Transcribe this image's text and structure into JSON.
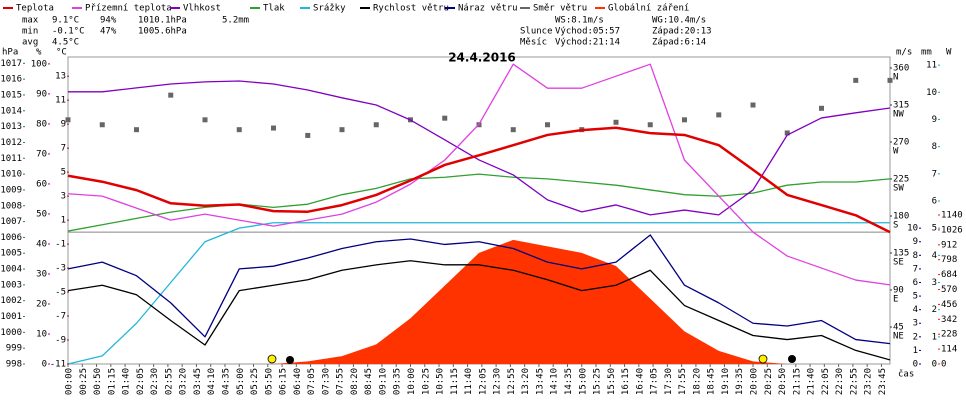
{
  "chart_data": {
    "type": "line",
    "title": "24.4.2016",
    "x_label": "čas",
    "annotations": {
      "rows": [
        [
          "max",
          "9.1°C",
          "94%",
          "1010.1hPa",
          "5.2mm"
        ],
        [
          "min",
          "-0.1°C",
          "47%",
          "1005.6hPa"
        ],
        [
          "avg",
          "4.5°C"
        ]
      ],
      "wind": "WS:8.1m/s",
      "gust": "WG:10.4m/s",
      "sun": [
        "Slunce",
        "Východ:05:57",
        "Západ:20:13"
      ],
      "moon": [
        "Měsíc",
        "Východ:21:14",
        "Západ:6:14"
      ]
    },
    "xlim": [
      0,
      1440
    ],
    "xticks": [
      {
        "value": 0,
        "label": "00:00"
      },
      {
        "value": 25,
        "label": "00:25"
      },
      {
        "value": 50,
        "label": "00:50"
      },
      {
        "value": 75,
        "label": "01:15"
      },
      {
        "value": 100,
        "label": "01:40"
      },
      {
        "value": 125,
        "label": "02:05"
      },
      {
        "value": 150,
        "label": "02:30"
      },
      {
        "value": 175,
        "label": "02:55"
      },
      {
        "value": 200,
        "label": "03:20"
      },
      {
        "value": 225,
        "label": "03:45"
      },
      {
        "value": 250,
        "label": "04:10"
      },
      {
        "value": 275,
        "label": "04:35"
      },
      {
        "value": 300,
        "label": "05:00"
      },
      {
        "value": 325,
        "label": "05:25"
      },
      {
        "value": 350,
        "label": "05:50"
      },
      {
        "value": 375,
        "label": "06:15"
      },
      {
        "value": 400,
        "label": "06:40"
      },
      {
        "value": 425,
        "label": "07:05"
      },
      {
        "value": 450,
        "label": "07:30"
      },
      {
        "value": 475,
        "label": "07:55"
      },
      {
        "value": 500,
        "label": "08:20"
      },
      {
        "value": 525,
        "label": "08:45"
      },
      {
        "value": 550,
        "label": "09:10"
      },
      {
        "value": 575,
        "label": "09:35"
      },
      {
        "value": 600,
        "label": "10:00"
      },
      {
        "value": 625,
        "label": "10:25"
      },
      {
        "value": 650,
        "label": "10:50"
      },
      {
        "value": 675,
        "label": "11:15"
      },
      {
        "value": 700,
        "label": "11:40"
      },
      {
        "value": 725,
        "label": "12:05"
      },
      {
        "value": 750,
        "label": "12:30"
      },
      {
        "value": 775,
        "label": "12:55"
      },
      {
        "value": 800,
        "label": "13:20"
      },
      {
        "value": 825,
        "label": "13:45"
      },
      {
        "value": 850,
        "label": "14:10"
      },
      {
        "value": 875,
        "label": "14:35"
      },
      {
        "value": 900,
        "label": "15:00"
      },
      {
        "value": 925,
        "label": "15:25"
      },
      {
        "value": 950,
        "label": "15:50"
      },
      {
        "value": 975,
        "label": "16:15"
      },
      {
        "value": 1000,
        "label": "16:40"
      },
      {
        "value": 1025,
        "label": "17:05"
      },
      {
        "value": 1050,
        "label": "17:30"
      },
      {
        "value": 1075,
        "label": "17:55"
      },
      {
        "value": 1100,
        "label": "18:20"
      },
      {
        "value": 1125,
        "label": "18:45"
      },
      {
        "value": 1150,
        "label": "19:10"
      },
      {
        "value": 1175,
        "label": "19:35"
      },
      {
        "value": 1200,
        "label": "20:00"
      },
      {
        "value": 1225,
        "label": "20:25"
      },
      {
        "value": 1250,
        "label": "20:50"
      },
      {
        "value": 1275,
        "label": "21:15"
      },
      {
        "value": 1300,
        "label": "21:40"
      },
      {
        "value": 1325,
        "label": "22:05"
      },
      {
        "value": 1350,
        "label": "22:30"
      },
      {
        "value": 1375,
        "label": "22:55"
      },
      {
        "value": 1400,
        "label": "23:20"
      },
      {
        "value": 1425,
        "label": "23:45"
      }
    ],
    "x": [
      0,
      60,
      120,
      180,
      240,
      300,
      360,
      420,
      480,
      540,
      600,
      660,
      720,
      780,
      840,
      900,
      960,
      1020,
      1080,
      1140,
      1200,
      1260,
      1320,
      1380,
      1440
    ],
    "axes": [
      {
        "unit": "hPa",
        "color": "#2a8a2a",
        "lim": [
          998,
          1017.4
        ],
        "ticks": [
          998,
          999,
          1000,
          1001,
          1002,
          1003,
          1004,
          1005,
          1006,
          1007,
          1008,
          1009,
          1010,
          1011,
          1012,
          1013,
          1014,
          1015,
          1016,
          1017
        ]
      },
      {
        "unit": "%",
        "color": "#a000a0",
        "lim": [
          0,
          102.3
        ],
        "ticks": [
          0,
          10,
          20,
          30,
          40,
          50,
          60,
          70,
          80,
          90,
          100
        ]
      },
      {
        "unit": "°C",
        "color": "#dd0000",
        "lim": [
          -11,
          14.6
        ],
        "ticks": [
          -11,
          -9,
          -7,
          -5,
          -3,
          -1,
          1,
          3,
          5,
          7,
          9,
          11,
          13
        ]
      },
      {
        "color": "#333333",
        "lim": [
          0,
          373.4
        ],
        "ticks": [
          45,
          90,
          135,
          180,
          225,
          270,
          315,
          360
        ],
        "compass": [
          "NE",
          "E",
          "SE",
          "S",
          "SW",
          "W",
          "NW",
          "N"
        ]
      },
      {
        "unit": "m/s",
        "color": "#000080",
        "lim": [
          0,
          22.6
        ],
        "ticks": [
          0,
          1,
          2,
          3,
          4,
          5,
          6,
          7,
          8,
          9,
          10
        ]
      },
      {
        "unit": "mm",
        "color": "#1aa8c8",
        "lim": [
          0,
          11.3
        ],
        "ticks": [
          0,
          1,
          2,
          3,
          4,
          5,
          6,
          7,
          8,
          9,
          10,
          11
        ]
      },
      {
        "unit": "W",
        "color": "#ee2200",
        "lim": [
          0,
          2349
        ],
        "ticks": [
          0,
          114,
          228,
          342,
          456,
          570,
          684,
          798,
          912,
          1026,
          1140
        ]
      }
    ],
    "series": [
      {
        "name": "Teplota",
        "color": "#e00000",
        "axis": 2,
        "style": "line",
        "values": [
          4.7,
          4.2,
          3.5,
          2.4,
          2.2,
          2.3,
          1.75,
          1.7,
          2.25,
          3.1,
          4.3,
          5.6,
          6.4,
          7.25,
          8.1,
          8.5,
          8.7,
          8.25,
          8.1,
          7.25,
          5.2,
          3.1,
          2.25,
          1.4,
          0
        ]
      },
      {
        "name": "Přízemní teplota",
        "color": "#e040e0",
        "axis": 2,
        "style": "line",
        "values": [
          3.2,
          3.0,
          2.0,
          1.0,
          1.5,
          1.0,
          0.5,
          1.0,
          1.5,
          2.5,
          4.0,
          6.0,
          9.0,
          14,
          12,
          12,
          13,
          14,
          6,
          3,
          0,
          -2,
          -3,
          -4,
          -4.4
        ]
      },
      {
        "name": "Vlhkost",
        "color": "#8000c0",
        "axis": 1,
        "style": "line",
        "values": [
          90.7,
          90.7,
          92,
          93.3,
          94,
          94.3,
          93.3,
          91.3,
          88.7,
          86.3,
          81.3,
          74.7,
          68,
          63,
          54.7,
          50.7,
          53,
          49.7,
          51.3,
          49.7,
          58,
          76.3,
          82,
          83.7,
          85.3
        ]
      },
      {
        "name": "Tlak",
        "color": "#30a030",
        "axis": 0,
        "style": "line",
        "values": [
          1006.4,
          1006.8,
          1007.2,
          1007.6,
          1007.9,
          1008.1,
          1007.9,
          1008.1,
          1008.7,
          1009.1,
          1009.7,
          1009.8,
          1010.0,
          1009.8,
          1009.7,
          1009.5,
          1009.3,
          1009.0,
          1008.7,
          1008.6,
          1008.8,
          1009.3,
          1009.5,
          1009.5,
          1009.7
        ]
      },
      {
        "name": "Srážky",
        "color": "#20b8d8",
        "axis": 5,
        "style": "line",
        "values": [
          0,
          0.3,
          1.5,
          3.0,
          4.5,
          5.0,
          5.2,
          5.2,
          5.2,
          5.2,
          5.2,
          5.2,
          5.2,
          5.2,
          5.2,
          5.2,
          5.2,
          5.2,
          5.2,
          5.2,
          5.2,
          5.2,
          5.2,
          5.2,
          5.2
        ]
      },
      {
        "name": "Rychlost větru",
        "color": "#000000",
        "axis": 4,
        "style": "line",
        "values": [
          5.4,
          5.8,
          5.1,
          3.2,
          1.4,
          5.4,
          5.8,
          6.2,
          6.9,
          7.3,
          7.6,
          7.3,
          7.3,
          6.9,
          6.2,
          5.4,
          5.8,
          6.9,
          4.3,
          3.2,
          2.1,
          1.8,
          2.1,
          1.0,
          0.3
        ]
      },
      {
        "name": "Náraz větru",
        "color": "#000080",
        "axis": 4,
        "style": "line",
        "values": [
          7.0,
          7.5,
          6.5,
          4.5,
          2.0,
          7.0,
          7.2,
          7.8,
          8.5,
          9.0,
          9.2,
          8.8,
          9.0,
          8.5,
          7.5,
          7.0,
          7.5,
          9.5,
          5.8,
          4.5,
          3.0,
          2.8,
          3.2,
          1.8,
          1.5
        ]
      },
      {
        "name": "Směr větru",
        "color": "#666666",
        "axis": 3,
        "style": "points",
        "values": [
          297,
          291,
          285,
          327,
          297,
          285,
          287,
          278,
          285,
          291,
          297,
          299,
          291,
          285,
          291,
          285,
          294,
          291,
          297,
          303,
          315,
          281,
          311,
          345,
          345
        ]
      },
      {
        "name": "Globální záření",
        "color": "#ff3300",
        "axis": 6,
        "style": "area",
        "values": [
          0,
          0,
          0,
          0,
          0,
          0,
          0,
          20,
          60,
          150,
          350,
          600,
          850,
          950,
          900,
          850,
          750,
          500,
          250,
          100,
          20,
          0,
          0,
          0,
          0
        ]
      }
    ]
  }
}
